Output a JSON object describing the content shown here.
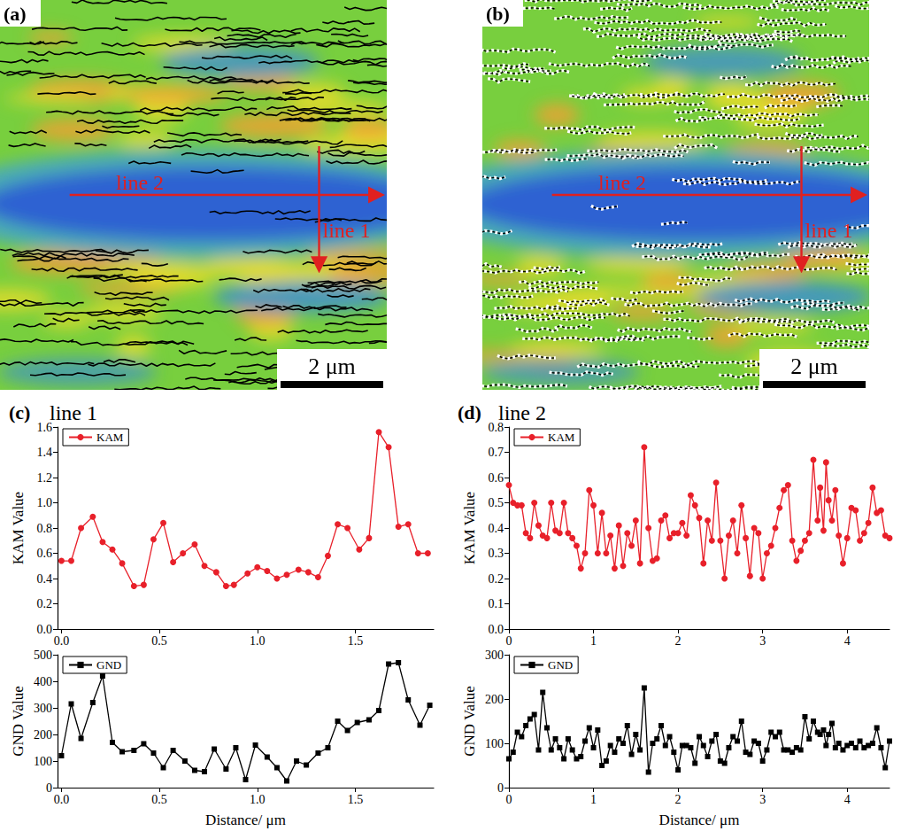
{
  "maps": [
    {
      "letter": "(a)",
      "scale_bar": "2 μm",
      "arrows": [
        {
          "label": "line 2",
          "direction": "horizontal"
        },
        {
          "label": "line 1",
          "direction": "vertical"
        }
      ]
    },
    {
      "letter": "(b)",
      "scale_bar": "2 μm",
      "arrows": [
        {
          "label": "line 2",
          "direction": "horizontal"
        },
        {
          "label": "line 1",
          "direction": "vertical"
        }
      ]
    }
  ],
  "chart_data": [
    {
      "label": "(c)",
      "title": "line 1",
      "plots": [
        {
          "type": "line",
          "ylabel": "KAM Value",
          "legend": "upper left",
          "grid": false,
          "xlim": [
            -0.02,
            1.9
          ],
          "xticks": [
            {
              "value": 0,
              "label": "0.0"
            },
            {
              "value": 0.5,
              "label": "0.5"
            },
            {
              "value": 1,
              "label": "1.0"
            },
            {
              "value": 1.5,
              "label": "1.5"
            }
          ],
          "ylim": [
            0,
            1.6
          ],
          "yticks": [
            {
              "value": 0,
              "label": "0.0"
            },
            {
              "value": 0.2,
              "label": "0.2"
            },
            {
              "value": 0.4,
              "label": "0.4"
            },
            {
              "value": 0.6,
              "label": "0.6"
            },
            {
              "value": 0.8,
              "label": "0.8"
            },
            {
              "value": 1,
              "label": "1.0"
            },
            {
              "value": 1.2,
              "label": "1.2"
            },
            {
              "value": 1.4,
              "label": "1.4"
            },
            {
              "value": 1.6,
              "label": "1.6"
            }
          ],
          "x": [
            0,
            0.05,
            0.1,
            0.16,
            0.21,
            0.26,
            0.31,
            0.37,
            0.42,
            0.47,
            0.52,
            0.57,
            0.62,
            0.68,
            0.73,
            0.79,
            0.84,
            0.88,
            0.95,
            1,
            1.05,
            1.1,
            1.15,
            1.21,
            1.26,
            1.31,
            1.36,
            1.41,
            1.46,
            1.52,
            1.57,
            1.62,
            1.67,
            1.72,
            1.77,
            1.82,
            1.87
          ],
          "series": [
            {
              "name": "KAM",
              "color": "#e8202a",
              "marker": "circle",
              "values": [
                0.54,
                0.54,
                0.8,
                0.89,
                0.69,
                0.63,
                0.52,
                0.34,
                0.35,
                0.71,
                0.84,
                0.53,
                0.6,
                0.67,
                0.5,
                0.45,
                0.34,
                0.35,
                0.44,
                0.49,
                0.46,
                0.4,
                0.43,
                0.47,
                0.45,
                0.41,
                0.58,
                0.83,
                0.8,
                0.63,
                0.72,
                1.56,
                1.44,
                0.81,
                0.83,
                0.6,
                0.6
              ]
            }
          ]
        },
        {
          "type": "line",
          "ylabel": "GND Value",
          "xlabel": "Distance/ μm",
          "legend": "upper left",
          "grid": false,
          "xlim": [
            -0.02,
            1.9
          ],
          "xticks": [
            {
              "value": 0,
              "label": "0.0"
            },
            {
              "value": 0.5,
              "label": "0.5"
            },
            {
              "value": 1,
              "label": "1.0"
            },
            {
              "value": 1.5,
              "label": "1.5"
            }
          ],
          "ylim": [
            0,
            500
          ],
          "yticks": [
            0,
            100,
            200,
            300,
            400,
            500
          ],
          "x": [
            0,
            0.05,
            0.1,
            0.16,
            0.21,
            0.26,
            0.31,
            0.37,
            0.42,
            0.47,
            0.52,
            0.57,
            0.63,
            0.68,
            0.73,
            0.78,
            0.84,
            0.89,
            0.94,
            0.99,
            1.05,
            1.1,
            1.15,
            1.2,
            1.25,
            1.31,
            1.36,
            1.41,
            1.46,
            1.51,
            1.57,
            1.62,
            1.67,
            1.72,
            1.77,
            1.83,
            1.88
          ],
          "series": [
            {
              "name": "GND",
              "color": "#000000",
              "marker": "square",
              "values": [
                120,
                315,
                185,
                320,
                420,
                170,
                135,
                140,
                165,
                130,
                75,
                140,
                100,
                65,
                60,
                145,
                70,
                150,
                30,
                160,
                115,
                75,
                25,
                100,
                85,
                130,
                150,
                250,
                215,
                245,
                255,
                290,
                465,
                470,
                330,
                235,
                310
              ]
            }
          ]
        }
      ]
    },
    {
      "label": "(d)",
      "title": "line 2",
      "plots": [
        {
          "type": "line",
          "ylabel": "KAM Value",
          "legend": "upper left",
          "grid": false,
          "xlim": [
            0,
            4.5
          ],
          "xticks": [
            0,
            1,
            2,
            3,
            4
          ],
          "ylim": [
            0,
            0.8
          ],
          "yticks": [
            {
              "value": 0,
              "label": "0.0"
            },
            {
              "value": 0.1,
              "label": "0.1"
            },
            {
              "value": 0.2,
              "label": "0.2"
            },
            {
              "value": 0.3,
              "label": "0.3"
            },
            {
              "value": 0.4,
              "label": "0.4"
            },
            {
              "value": 0.5,
              "label": "0.5"
            },
            {
              "value": 0.6,
              "label": "0.6"
            },
            {
              "value": 0.7,
              "label": "0.7"
            },
            {
              "value": 0.8,
              "label": "0.8"
            }
          ],
          "x": [
            0,
            0.05,
            0.1,
            0.15,
            0.2,
            0.25,
            0.3,
            0.35,
            0.4,
            0.45,
            0.5,
            0.55,
            0.6,
            0.65,
            0.7,
            0.75,
            0.8,
            0.85,
            0.9,
            0.95,
            1,
            1.05,
            1.1,
            1.15,
            1.2,
            1.25,
            1.3,
            1.35,
            1.4,
            1.45,
            1.5,
            1.55,
            1.6,
            1.65,
            1.7,
            1.75,
            1.8,
            1.85,
            1.9,
            1.95,
            2,
            2.05,
            2.1,
            2.15,
            2.2,
            2.25,
            2.3,
            2.35,
            2.4,
            2.45,
            2.5,
            2.55,
            2.6,
            2.65,
            2.7,
            2.75,
            2.8,
            2.85,
            2.9,
            2.95,
            3,
            3.05,
            3.1,
            3.15,
            3.2,
            3.25,
            3.3,
            3.35,
            3.4,
            3.45,
            3.5,
            3.55,
            3.6,
            3.65,
            3.68,
            3.72,
            3.75,
            3.78,
            3.82,
            3.86,
            3.9,
            3.95,
            4,
            4.05,
            4.1,
            4.15,
            4.2,
            4.25,
            4.3,
            4.35,
            4.4,
            4.45,
            4.5
          ],
          "series": [
            {
              "name": "KAM",
              "color": "#e8202a",
              "marker": "circle",
              "values": [
                0.57,
                0.5,
                0.49,
                0.49,
                0.38,
                0.36,
                0.5,
                0.41,
                0.37,
                0.36,
                0.5,
                0.39,
                0.38,
                0.5,
                0.38,
                0.36,
                0.33,
                0.24,
                0.3,
                0.55,
                0.49,
                0.3,
                0.46,
                0.3,
                0.37,
                0.24,
                0.41,
                0.25,
                0.38,
                0.33,
                0.43,
                0.26,
                0.72,
                0.4,
                0.27,
                0.28,
                0.43,
                0.45,
                0.36,
                0.38,
                0.38,
                0.42,
                0.37,
                0.53,
                0.49,
                0.44,
                0.26,
                0.43,
                0.35,
                0.58,
                0.35,
                0.2,
                0.37,
                0.43,
                0.3,
                0.49,
                0.36,
                0.21,
                0.4,
                0.38,
                0.2,
                0.3,
                0.33,
                0.4,
                0.48,
                0.55,
                0.57,
                0.35,
                0.27,
                0.31,
                0.35,
                0.38,
                0.67,
                0.43,
                0.56,
                0.39,
                0.66,
                0.51,
                0.43,
                0.55,
                0.37,
                0.26,
                0.36,
                0.48,
                0.47,
                0.35,
                0.38,
                0.42,
                0.56,
                0.46,
                0.47,
                0.37,
                0.36
              ]
            }
          ]
        },
        {
          "type": "line",
          "ylabel": "GND Value",
          "xlabel": "Distance/ μm",
          "legend": "upper left",
          "grid": false,
          "xlim": [
            0,
            4.5
          ],
          "xticks": [
            0,
            1,
            2,
            3,
            4
          ],
          "ylim": [
            0,
            300
          ],
          "yticks": [
            0,
            100,
            200,
            300
          ],
          "x": [
            0,
            0.05,
            0.1,
            0.15,
            0.2,
            0.25,
            0.3,
            0.35,
            0.4,
            0.45,
            0.5,
            0.55,
            0.6,
            0.65,
            0.7,
            0.75,
            0.8,
            0.85,
            0.9,
            0.95,
            1,
            1.05,
            1.1,
            1.15,
            1.2,
            1.25,
            1.3,
            1.35,
            1.4,
            1.45,
            1.5,
            1.55,
            1.6,
            1.65,
            1.7,
            1.75,
            1.8,
            1.85,
            1.9,
            1.95,
            2,
            2.05,
            2.1,
            2.15,
            2.2,
            2.25,
            2.3,
            2.35,
            2.4,
            2.45,
            2.5,
            2.55,
            2.6,
            2.65,
            2.7,
            2.75,
            2.8,
            2.85,
            2.9,
            2.95,
            3,
            3.05,
            3.1,
            3.15,
            3.2,
            3.25,
            3.3,
            3.35,
            3.4,
            3.45,
            3.5,
            3.55,
            3.6,
            3.65,
            3.68,
            3.72,
            3.75,
            3.78,
            3.82,
            3.86,
            3.9,
            3.95,
            4,
            4.05,
            4.1,
            4.15,
            4.2,
            4.25,
            4.3,
            4.35,
            4.4,
            4.45,
            4.5
          ],
          "series": [
            {
              "name": "GND",
              "color": "#000000",
              "marker": "square",
              "values": [
                65,
                80,
                125,
                115,
                140,
                155,
                165,
                85,
                215,
                135,
                85,
                110,
                90,
                65,
                110,
                85,
                65,
                70,
                105,
                135,
                90,
                130,
                50,
                60,
                95,
                80,
                110,
                100,
                140,
                75,
                120,
                85,
                225,
                35,
                100,
                110,
                140,
                95,
                115,
                80,
                40,
                95,
                95,
                90,
                55,
                115,
                95,
                70,
                105,
                120,
                60,
                55,
                90,
                115,
                105,
                150,
                80,
                75,
                105,
                100,
                60,
                85,
                125,
                115,
                125,
                85,
                85,
                80,
                90,
                85,
                160,
                110,
                150,
                125,
                120,
                130,
                95,
                120,
                145,
                90,
                100,
                85,
                95,
                100,
                90,
                105,
                90,
                95,
                100,
                135,
                90,
                45,
                105
              ]
            }
          ]
        }
      ]
    }
  ]
}
